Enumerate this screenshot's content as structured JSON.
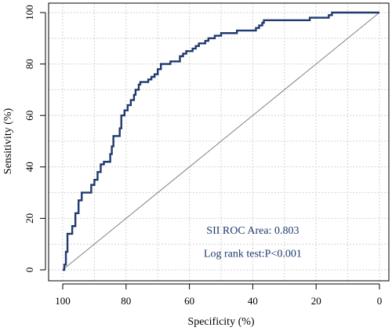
{
  "chart_data": {
    "type": "line",
    "title": "",
    "xlabel": "Specificity (%)",
    "ylabel": "Sensitivity (%)",
    "xlim": [
      100,
      0
    ],
    "ylim": [
      0,
      100
    ],
    "x_reversed": true,
    "x_ticks": [
      100,
      80,
      60,
      40,
      20,
      0
    ],
    "y_ticks": [
      0,
      20,
      40,
      60,
      80,
      100
    ],
    "x_tick_labels": [
      "100",
      "80",
      "60",
      "40",
      "20",
      "0"
    ],
    "y_tick_labels": [
      "0",
      "20",
      "40",
      "60",
      "80",
      "100"
    ],
    "grid": true,
    "legend": "none",
    "colors": {
      "roc": "#1f3a6e",
      "reference": "#808080",
      "grid": "#d3d3d3",
      "annotation": "#1f3a6e"
    },
    "series": [
      {
        "values": [
          [
            100,
            0
          ],
          [
            99.5,
            0
          ],
          [
            99.5,
            2
          ],
          [
            99,
            2
          ],
          [
            99,
            7
          ],
          [
            98.5,
            7
          ],
          [
            98.5,
            14
          ],
          [
            97,
            14
          ],
          [
            97,
            17
          ],
          [
            96,
            17
          ],
          [
            96,
            22
          ],
          [
            95,
            22
          ],
          [
            95,
            27
          ],
          [
            94,
            27
          ],
          [
            94,
            30
          ],
          [
            91,
            30
          ],
          [
            91,
            33
          ],
          [
            90,
            33
          ],
          [
            90,
            35
          ],
          [
            89,
            35
          ],
          [
            89,
            38
          ],
          [
            88,
            38
          ],
          [
            88,
            41
          ],
          [
            87,
            41
          ],
          [
            87,
            42
          ],
          [
            85,
            42
          ],
          [
            85,
            45
          ],
          [
            84.5,
            45
          ],
          [
            84.5,
            48
          ],
          [
            84,
            48
          ],
          [
            84,
            52
          ],
          [
            82,
            52
          ],
          [
            82,
            55
          ],
          [
            81.5,
            55
          ],
          [
            81.5,
            60
          ],
          [
            80.5,
            60
          ],
          [
            80.5,
            62
          ],
          [
            79.5,
            62
          ],
          [
            79.5,
            64
          ],
          [
            78.5,
            64
          ],
          [
            78.5,
            66
          ],
          [
            77.5,
            66
          ],
          [
            77.5,
            68
          ],
          [
            77,
            68
          ],
          [
            77,
            70
          ],
          [
            76,
            70
          ],
          [
            76,
            72
          ],
          [
            75.5,
            72
          ],
          [
            75.5,
            73
          ],
          [
            73,
            73
          ],
          [
            73,
            74
          ],
          [
            72,
            74
          ],
          [
            72,
            75
          ],
          [
            71,
            75
          ],
          [
            71,
            76
          ],
          [
            70,
            76
          ],
          [
            70,
            78
          ],
          [
            69,
            78
          ],
          [
            69,
            80
          ],
          [
            66,
            80
          ],
          [
            66,
            81
          ],
          [
            63,
            81
          ],
          [
            63,
            83
          ],
          [
            62,
            83
          ],
          [
            62,
            84
          ],
          [
            61,
            84
          ],
          [
            61,
            85
          ],
          [
            59,
            85
          ],
          [
            59,
            86
          ],
          [
            58,
            86
          ],
          [
            58,
            87
          ],
          [
            57,
            87
          ],
          [
            57,
            88
          ],
          [
            55,
            88
          ],
          [
            55,
            89
          ],
          [
            54,
            89
          ],
          [
            54,
            90
          ],
          [
            52,
            90
          ],
          [
            52,
            91
          ],
          [
            50,
            91
          ],
          [
            50,
            92
          ],
          [
            45,
            92
          ],
          [
            45,
            93
          ],
          [
            39,
            93
          ],
          [
            39,
            94
          ],
          [
            38,
            94
          ],
          [
            38,
            95
          ],
          [
            37,
            95
          ],
          [
            37,
            96
          ],
          [
            36.5,
            96
          ],
          [
            36.5,
            97
          ],
          [
            22,
            97
          ],
          [
            22,
            98
          ],
          [
            16,
            98
          ],
          [
            16,
            99
          ],
          [
            15,
            99
          ],
          [
            15,
            100
          ],
          [
            0,
            100
          ]
        ]
      },
      {
        "values": [
          [
            100,
            0
          ],
          [
            0,
            100
          ]
        ]
      }
    ],
    "annotations": [
      {
        "text": "SII ROC Area: 0.803",
        "x": 40,
        "y": 14
      },
      {
        "text": "Log rank test:P<0.001",
        "x": 40,
        "y": 5
      }
    ]
  }
}
